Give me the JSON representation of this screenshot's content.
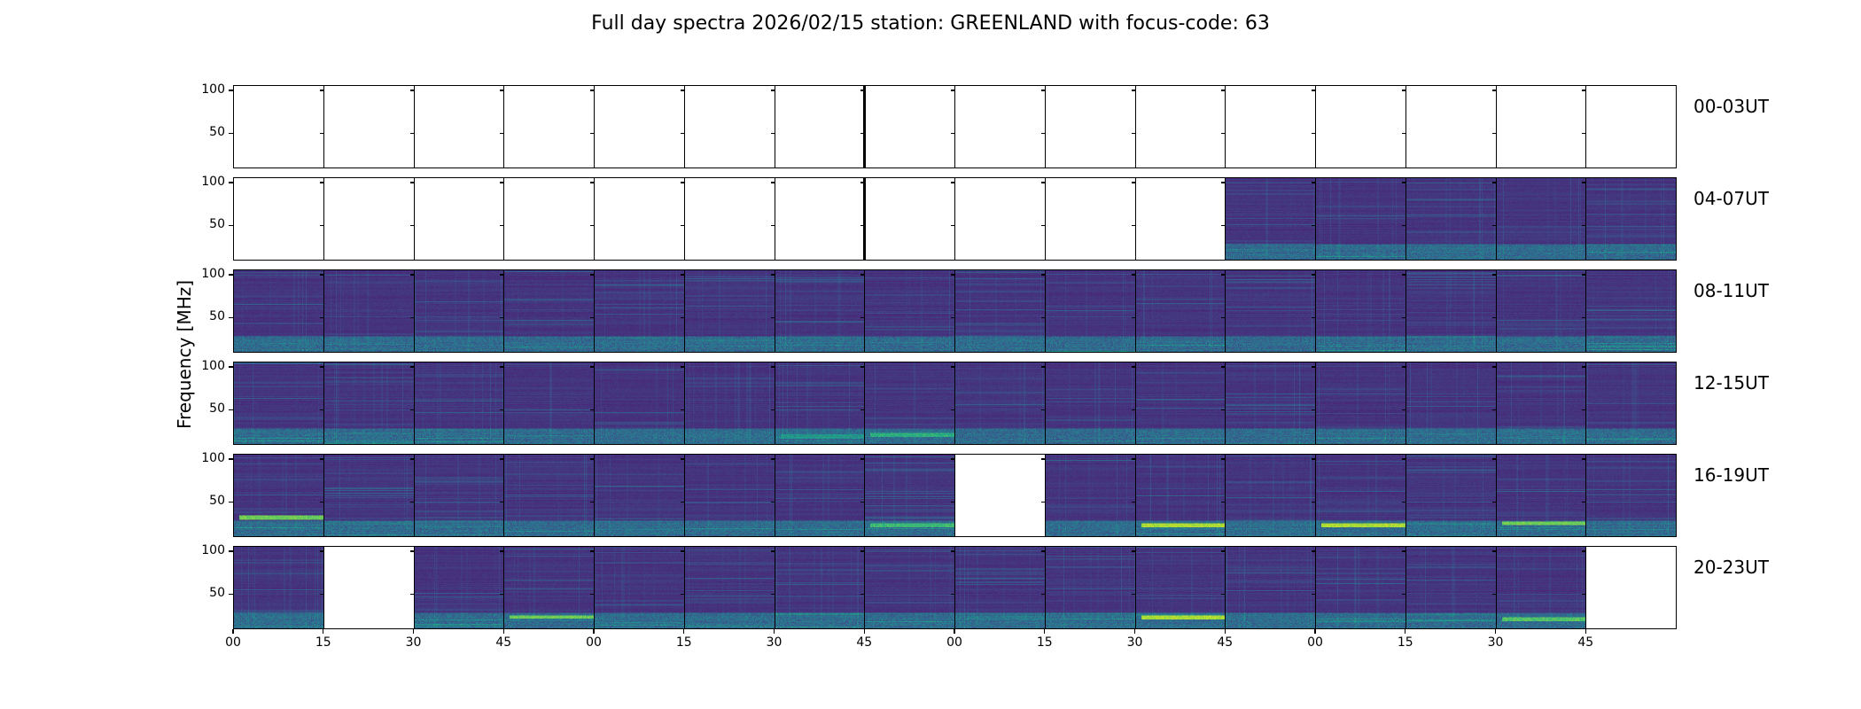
{
  "chart_data": {
    "type": "heatmap",
    "title": "Full day spectra 2026/02/15 station: GREENLAND with focus-code: 63",
    "ylabel": "Frequency [MHz]",
    "xlabel": "",
    "ylim": [
      9,
      106
    ],
    "yticks": [
      "100",
      "50"
    ],
    "ytick_values": [
      100,
      50
    ],
    "xticks": [
      "00",
      "15",
      "30",
      "45",
      "00",
      "15",
      "30",
      "45",
      "00",
      "15",
      "30",
      "45",
      "00",
      "15",
      "30",
      "45"
    ],
    "colormap": "viridis",
    "rows": [
      {
        "label": "00-03UT",
        "panels": [
          "empty",
          "empty",
          "empty",
          "empty",
          "empty",
          "empty",
          "empty",
          "empty",
          "empty",
          "empty",
          "empty",
          "empty",
          "empty",
          "empty",
          "empty",
          "empty"
        ]
      },
      {
        "label": "04-07UT",
        "panels": [
          "empty",
          "empty",
          "empty",
          "empty",
          "empty",
          "empty",
          "empty",
          "empty",
          "empty",
          "empty",
          "empty",
          "data",
          "data",
          "data",
          "data",
          "data"
        ]
      },
      {
        "label": "08-11UT",
        "panels": [
          "data",
          "data",
          "data",
          "data",
          "data",
          "data",
          "data",
          "data",
          "data",
          "data",
          "data",
          "data",
          "data",
          "data",
          "data",
          "data"
        ]
      },
      {
        "label": "12-15UT",
        "panels": [
          "data",
          "data",
          "data",
          "data",
          "data",
          "data",
          "data",
          "data",
          "data",
          "data",
          "data",
          "data",
          "data",
          "data",
          "data",
          "data"
        ]
      },
      {
        "label": "16-19UT",
        "panels": [
          "data",
          "data",
          "data",
          "data",
          "data",
          "data",
          "data",
          "data",
          "empty",
          "data",
          "data",
          "data",
          "data",
          "data",
          "data",
          "data"
        ]
      },
      {
        "label": "20-23UT",
        "panels": [
          "data",
          "empty",
          "data",
          "data",
          "data",
          "data",
          "data",
          "data",
          "data",
          "data",
          "data",
          "data",
          "data",
          "data",
          "data",
          "empty"
        ]
      }
    ],
    "bright_bands_mhz": [
      {
        "row": 3,
        "panel": 7,
        "freq": 20,
        "level": 0.7
      },
      {
        "row": 3,
        "panel": 6,
        "freq": 18,
        "level": 0.6
      },
      {
        "row": 4,
        "panel": 0,
        "freq": 32,
        "level": 0.85
      },
      {
        "row": 4,
        "panel": 7,
        "freq": 22,
        "level": 0.75
      },
      {
        "row": 4,
        "panel": 10,
        "freq": 22,
        "level": 0.95
      },
      {
        "row": 4,
        "panel": 12,
        "freq": 22,
        "level": 0.95
      },
      {
        "row": 4,
        "panel": 14,
        "freq": 25,
        "level": 0.85
      },
      {
        "row": 5,
        "panel": 3,
        "freq": 23,
        "level": 0.85
      },
      {
        "row": 5,
        "panel": 10,
        "freq": 22,
        "level": 0.95
      },
      {
        "row": 5,
        "panel": 14,
        "freq": 20,
        "level": 0.8
      }
    ]
  }
}
